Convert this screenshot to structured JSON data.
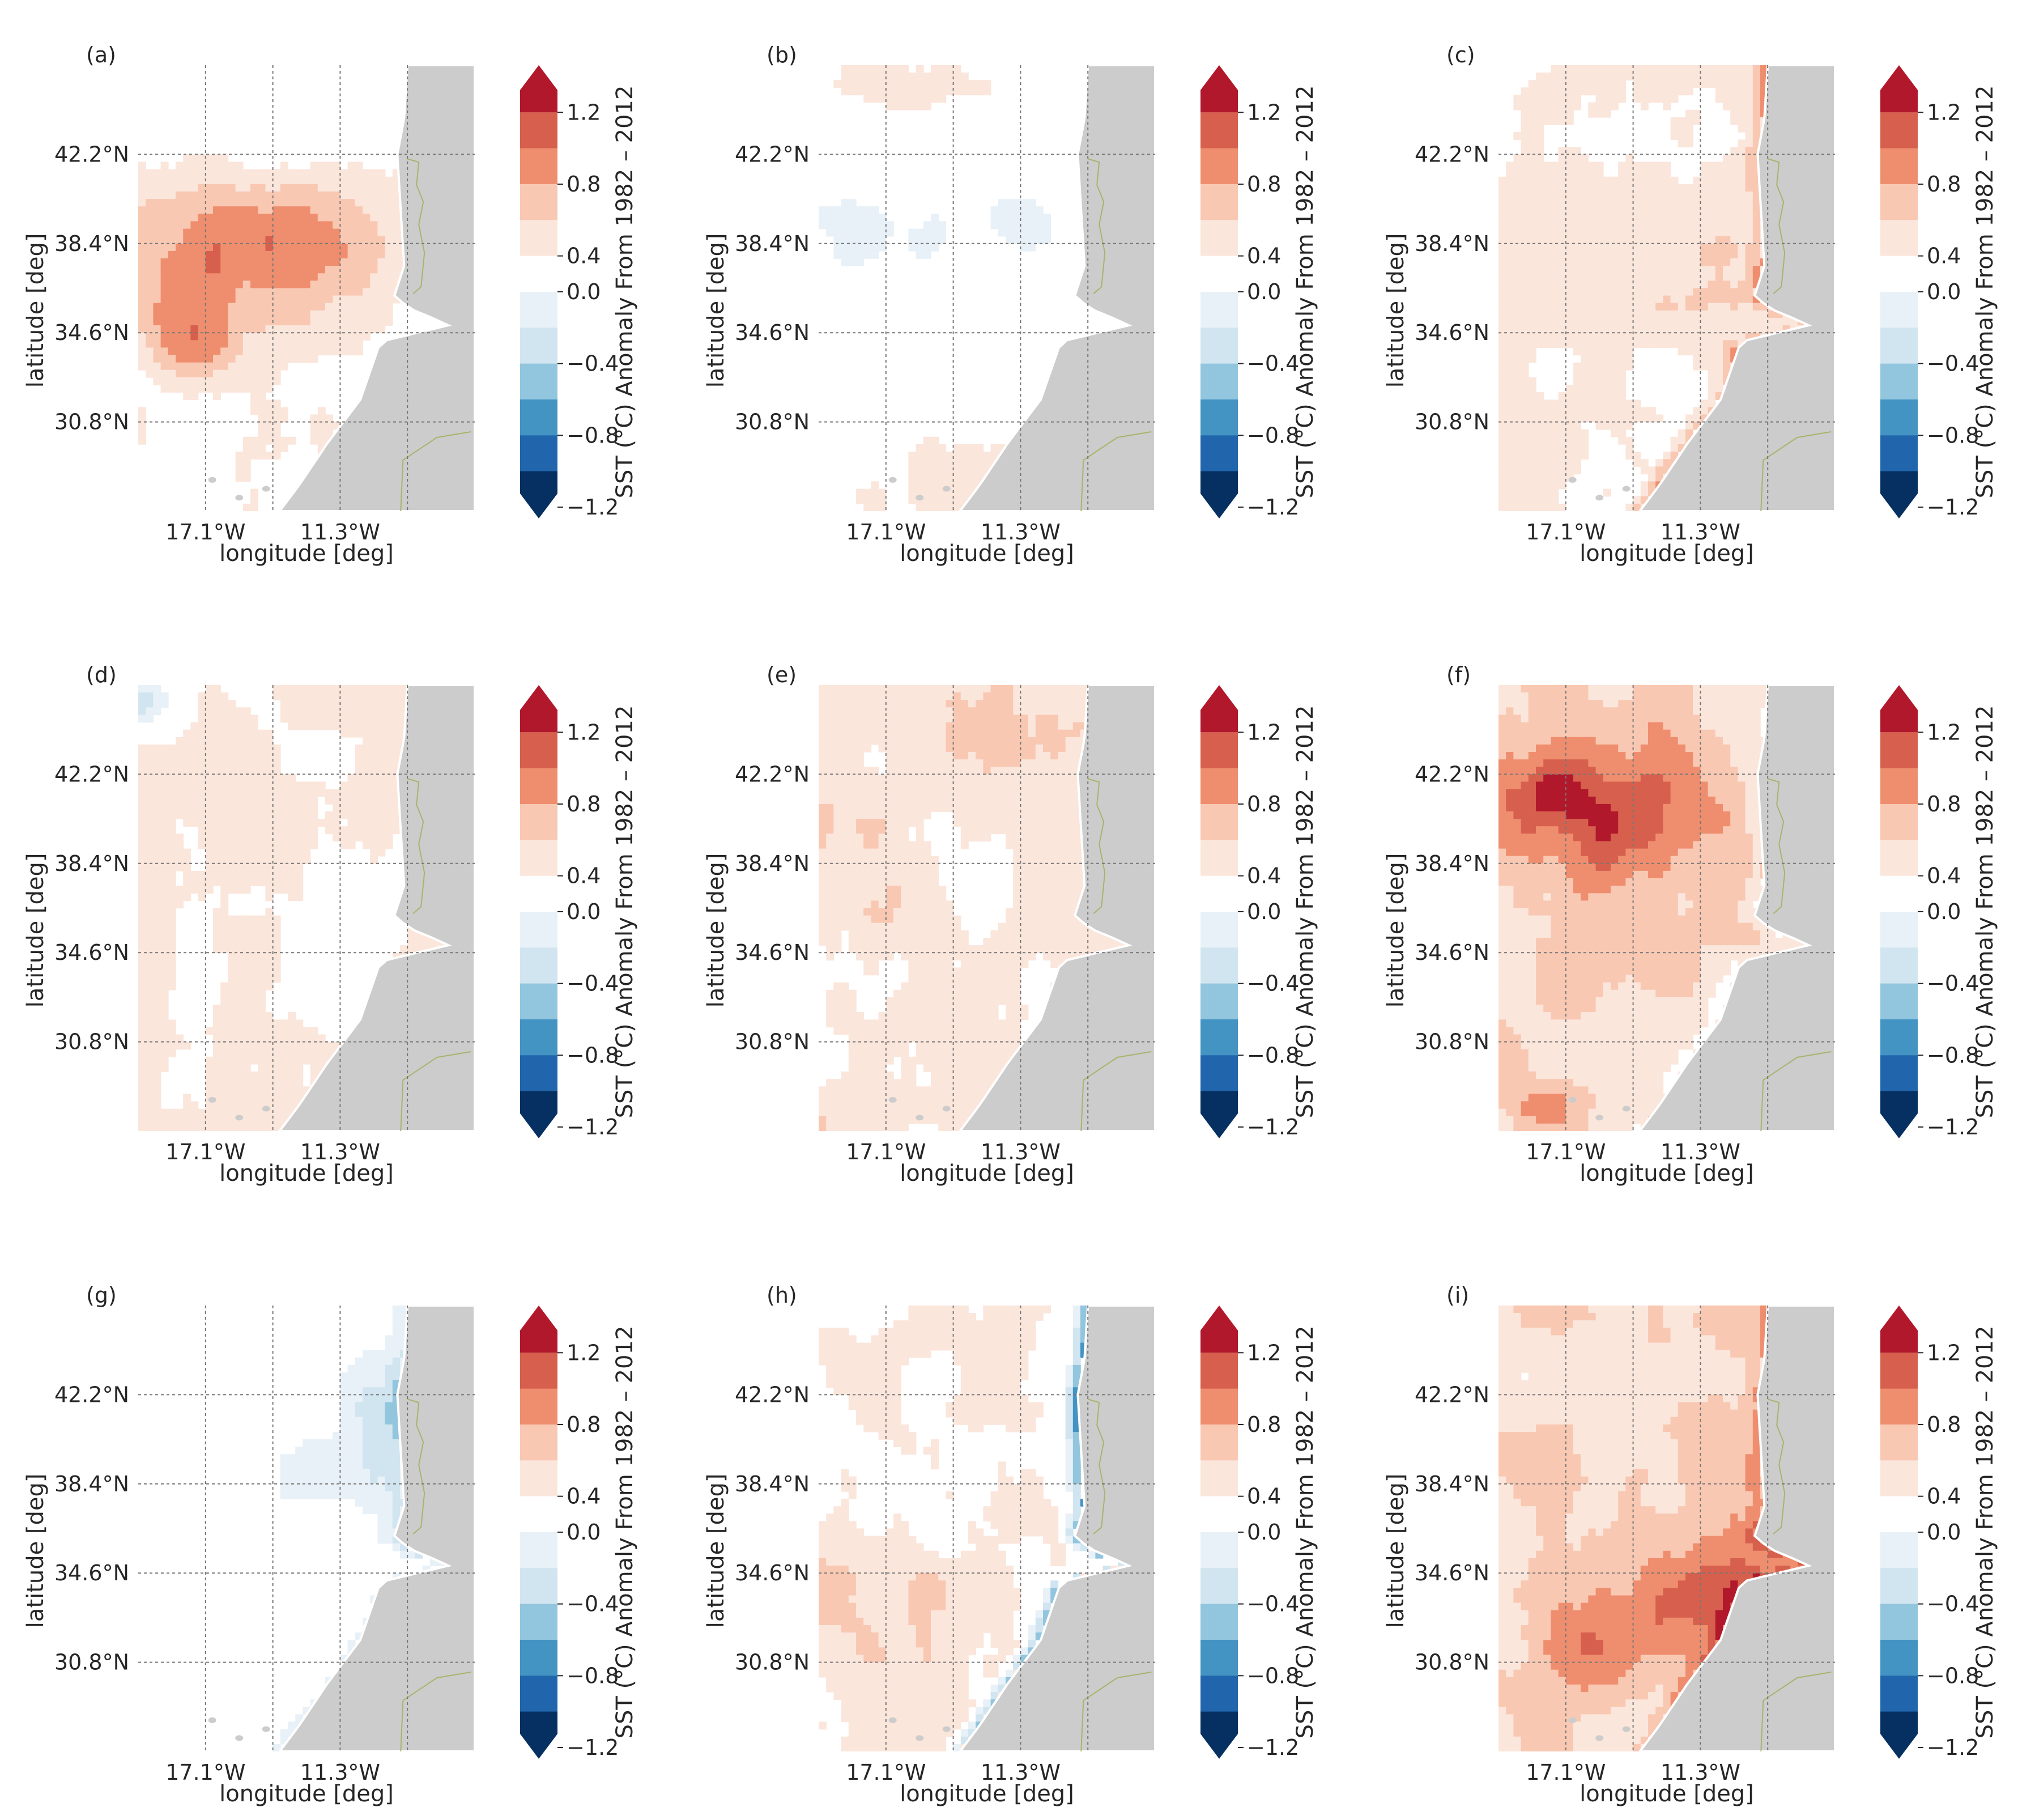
{
  "figure": {
    "colors": {
      "land": "#cccccc",
      "land_edge": "#ffffff",
      "ocean": "#ffffff",
      "grid": "#777777",
      "border": "#a9b36d"
    }
  },
  "chart_data": [
    {
      "type": "heatmap",
      "panel_label": "(a)",
      "variable": "SST anomaly",
      "xlabel": "longitude [deg]",
      "ylabel": "latitude [deg]",
      "xticks": [
        "17.1°W",
        "11.3°W"
      ],
      "yticks": [
        "42.2°N",
        "38.4°N",
        "34.6°N",
        "30.8°N"
      ],
      "colorbar": {
        "label": "SST (°C) Anomaly From 1982 – 2012",
        "ticks": [
          "1.2",
          "0.8",
          "0.4",
          "0.0",
          "−0.4",
          "−0.8",
          "−1.2"
        ],
        "levels": [
          -1.4,
          -1.2,
          -1.0,
          -0.8,
          -0.6,
          -0.4,
          -0.2,
          0.2,
          0.4,
          0.6,
          0.8,
          1.0,
          1.2,
          1.4
        ],
        "colors": [
          "#053061",
          "#2166ac",
          "#4393c3",
          "#92c5de",
          "#d1e5f0",
          "#e8f1f7",
          "#ffffff",
          "#fbe6dc",
          "#f9c8b2",
          "#ef8e6f",
          "#d6604d",
          "#b2182b"
        ]
      },
      "pattern": {
        "base": 0.12,
        "blobs": [
          [
            0.3,
            0.45,
            0.35,
            0.18,
            0.6
          ],
          [
            0.15,
            0.62,
            0.14,
            0.09,
            0.35
          ],
          [
            0.55,
            0.35,
            0.3,
            0.12,
            0.3
          ],
          [
            0.6,
            0.1,
            0.2,
            0.12,
            -0.2
          ]
        ],
        "coast": 0.0
      }
    },
    {
      "type": "heatmap",
      "panel_label": "(b)",
      "variable": "SST anomaly",
      "xlabel": "longitude [deg]",
      "ylabel": "latitude [deg]",
      "xticks": [
        "17.1°W",
        "11.3°W"
      ],
      "yticks": [
        "42.2°N",
        "38.4°N",
        "34.6°N",
        "30.8°N"
      ],
      "colorbar": {
        "label": "SST (°C) Anomaly From 1982 – 2012",
        "ticks": [
          "1.2",
          "0.8",
          "0.4",
          "0.0",
          "−0.4",
          "−0.8",
          "−1.2"
        ],
        "levels": [
          -1.4,
          -1.2,
          -1.0,
          -0.8,
          -0.6,
          -0.4,
          -0.2,
          0.2,
          0.4,
          0.6,
          0.8,
          1.0,
          1.2,
          1.4
        ],
        "colors": [
          "#053061",
          "#2166ac",
          "#4393c3",
          "#92c5de",
          "#d1e5f0",
          "#e8f1f7",
          "#ffffff",
          "#fbe6dc",
          "#f9c8b2",
          "#ef8e6f",
          "#d6604d",
          "#b2182b"
        ]
      },
      "pattern": {
        "base": 0.05,
        "blobs": [
          [
            0.45,
            0.35,
            0.4,
            0.12,
            -0.3
          ],
          [
            0.1,
            0.4,
            0.1,
            0.08,
            -0.2
          ],
          [
            0.3,
            0.05,
            0.4,
            0.06,
            0.25
          ],
          [
            0.5,
            0.9,
            0.4,
            0.1,
            0.25
          ]
        ],
        "coast": 0.0
      }
    },
    {
      "type": "heatmap",
      "panel_label": "(c)",
      "variable": "SST anomaly",
      "xlabel": "longitude [deg]",
      "ylabel": "latitude [deg]",
      "xticks": [
        "17.1°W",
        "11.3°W"
      ],
      "yticks": [
        "42.2°N",
        "38.4°N",
        "34.6°N",
        "30.8°N"
      ],
      "colorbar": {
        "label": "SST (°C) Anomaly From 1982 – 2012",
        "ticks": [
          "1.2",
          "0.8",
          "0.4",
          "0.0",
          "−0.4",
          "−0.8",
          "−1.2"
        ],
        "levels": [
          -1.4,
          -1.2,
          -1.0,
          -0.8,
          -0.6,
          -0.4,
          -0.2,
          0.2,
          0.4,
          0.6,
          0.8,
          1.0,
          1.2,
          1.4
        ],
        "colors": [
          "#053061",
          "#2166ac",
          "#4393c3",
          "#92c5de",
          "#d1e5f0",
          "#e8f1f7",
          "#ffffff",
          "#fbe6dc",
          "#f9c8b2",
          "#ef8e6f",
          "#d6604d",
          "#b2182b"
        ]
      },
      "pattern": {
        "base": 0.22,
        "blobs": [
          [
            0.9,
            0.05,
            0.1,
            0.08,
            0.3
          ],
          [
            0.65,
            0.5,
            0.2,
            0.15,
            0.1
          ]
        ],
        "coast": 0.35
      }
    },
    {
      "type": "heatmap",
      "panel_label": "(d)",
      "variable": "SST anomaly",
      "xlabel": "longitude [deg]",
      "ylabel": "latitude [deg]",
      "xticks": [
        "17.1°W",
        "11.3°W"
      ],
      "yticks": [
        "42.2°N",
        "38.4°N",
        "34.6°N",
        "30.8°N"
      ],
      "colorbar": {
        "label": "SST (°C) Anomaly From 1982 – 2012",
        "ticks": [
          "1.2",
          "0.8",
          "0.4",
          "0.0",
          "−0.4",
          "−0.8",
          "−1.2"
        ],
        "levels": [
          -1.4,
          -1.2,
          -1.0,
          -0.8,
          -0.6,
          -0.4,
          -0.2,
          0.2,
          0.4,
          0.6,
          0.8,
          1.0,
          1.2,
          1.4
        ],
        "colors": [
          "#053061",
          "#2166ac",
          "#4393c3",
          "#92c5de",
          "#d1e5f0",
          "#e8f1f7",
          "#ffffff",
          "#fbe6dc",
          "#f9c8b2",
          "#ef8e6f",
          "#d6604d",
          "#b2182b"
        ]
      },
      "pattern": {
        "base": 0.22,
        "blobs": [
          [
            0.03,
            0.04,
            0.12,
            0.07,
            -0.55
          ],
          [
            0.6,
            0.55,
            0.2,
            0.15,
            -0.1
          ]
        ],
        "coast": 0.0
      }
    },
    {
      "type": "heatmap",
      "panel_label": "(e)",
      "variable": "SST anomaly",
      "xlabel": "longitude [deg]",
      "ylabel": "latitude [deg]",
      "xticks": [
        "17.1°W",
        "11.3°W"
      ],
      "yticks": [
        "42.2°N",
        "38.4°N",
        "34.6°N",
        "30.8°N"
      ],
      "colorbar": {
        "label": "SST (°C) Anomaly From 1982 – 2012",
        "ticks": [
          "1.2",
          "0.8",
          "0.4",
          "0.0",
          "−0.4",
          "−0.8",
          "−1.2"
        ],
        "levels": [
          -1.4,
          -1.2,
          -1.0,
          -0.8,
          -0.6,
          -0.4,
          -0.2,
          0.2,
          0.4,
          0.6,
          0.8,
          1.0,
          1.2,
          1.4
        ],
        "colors": [
          "#053061",
          "#2166ac",
          "#4393c3",
          "#92c5de",
          "#d1e5f0",
          "#e8f1f7",
          "#ffffff",
          "#fbe6dc",
          "#f9c8b2",
          "#ef8e6f",
          "#d6604d",
          "#b2182b"
        ]
      },
      "pattern": {
        "base": 0.28,
        "blobs": [
          [
            0.6,
            0.08,
            0.3,
            0.1,
            0.2
          ],
          [
            0.9,
            0.5,
            0.05,
            0.04,
            0.5
          ],
          [
            0.4,
            0.5,
            0.2,
            0.15,
            -0.1
          ]
        ],
        "coast": 0.0
      }
    },
    {
      "type": "heatmap",
      "panel_label": "(f)",
      "variable": "SST anomaly",
      "xlabel": "longitude [deg]",
      "ylabel": "latitude [deg]",
      "xticks": [
        "17.1°W",
        "11.3°W"
      ],
      "yticks": [
        "42.2°N",
        "38.4°N",
        "34.6°N",
        "30.8°N"
      ],
      "colorbar": {
        "label": "SST (°C) Anomaly From 1982 – 2012",
        "ticks": [
          "1.2",
          "0.8",
          "0.4",
          "0.0",
          "−0.4",
          "−0.8",
          "−1.2"
        ],
        "levels": [
          -1.4,
          -1.2,
          -1.0,
          -0.8,
          -0.6,
          -0.4,
          -0.2,
          0.2,
          0.4,
          0.6,
          0.8,
          1.0,
          1.2,
          1.4
        ],
        "colors": [
          "#053061",
          "#2166ac",
          "#4393c3",
          "#92c5de",
          "#d1e5f0",
          "#e8f1f7",
          "#ffffff",
          "#fbe6dc",
          "#f9c8b2",
          "#ef8e6f",
          "#d6604d",
          "#b2182b"
        ]
      },
      "pattern": {
        "base": 0.32,
        "blobs": [
          [
            0.3,
            0.28,
            0.35,
            0.18,
            0.6
          ],
          [
            0.15,
            0.25,
            0.12,
            0.06,
            0.35
          ],
          [
            0.4,
            0.6,
            0.3,
            0.1,
            0.15
          ],
          [
            0.15,
            0.95,
            0.15,
            0.06,
            0.3
          ],
          [
            0.92,
            0.49,
            0.05,
            0.03,
            0.6
          ]
        ],
        "coast": -0.2
      }
    },
    {
      "type": "heatmap",
      "panel_label": "(g)",
      "variable": "SST anomaly",
      "xlabel": "longitude [deg]",
      "ylabel": "latitude [deg]",
      "xticks": [
        "17.1°W",
        "11.3°W"
      ],
      "yticks": [
        "42.2°N",
        "38.4°N",
        "34.6°N",
        "30.8°N"
      ],
      "colorbar": {
        "label": "SST (°C) Anomaly From 1982 – 2012",
        "ticks": [
          "1.2",
          "0.8",
          "0.4",
          "0.0",
          "−0.4",
          "−0.8",
          "−1.2"
        ],
        "levels": [
          -1.4,
          -1.2,
          -1.0,
          -0.8,
          -0.6,
          -0.4,
          -0.2,
          0.2,
          0.4,
          0.6,
          0.8,
          1.0,
          1.2,
          1.4
        ],
        "colors": [
          "#053061",
          "#2166ac",
          "#4393c3",
          "#92c5de",
          "#d1e5f0",
          "#e8f1f7",
          "#ffffff",
          "#fbe6dc",
          "#f9c8b2",
          "#ef8e6f",
          "#d6604d",
          "#b2182b"
        ]
      },
      "pattern": {
        "base": -0.02,
        "blobs": [
          [
            0.72,
            0.3,
            0.1,
            0.2,
            -0.45
          ],
          [
            0.5,
            0.4,
            0.2,
            0.1,
            -0.2
          ],
          [
            0.95,
            0.05,
            0.1,
            0.06,
            0.6
          ]
        ],
        "coast": -0.3
      }
    },
    {
      "type": "heatmap",
      "panel_label": "(h)",
      "variable": "SST anomaly",
      "xlabel": "longitude [deg]",
      "ylabel": "latitude [deg]",
      "xticks": [
        "17.1°W",
        "11.3°W"
      ],
      "yticks": [
        "42.2°N",
        "38.4°N",
        "34.6°N",
        "30.8°N"
      ],
      "colorbar": {
        "label": "SST (°C) Anomaly From 1982 – 2012",
        "ticks": [
          "1.2",
          "0.8",
          "0.4",
          "0.0",
          "−0.4",
          "−0.8",
          "−1.2"
        ],
        "levels": [
          -1.4,
          -1.2,
          -1.0,
          -0.8,
          -0.6,
          -0.4,
          -0.2,
          0.2,
          0.4,
          0.6,
          0.8,
          1.0,
          1.2,
          1.4
        ],
        "colors": [
          "#053061",
          "#2166ac",
          "#4393c3",
          "#92c5de",
          "#d1e5f0",
          "#e8f1f7",
          "#ffffff",
          "#fbe6dc",
          "#f9c8b2",
          "#ef8e6f",
          "#d6604d",
          "#b2182b"
        ]
      },
      "pattern": {
        "base": 0.2,
        "blobs": [
          [
            0.15,
            0.65,
            0.2,
            0.15,
            0.25
          ],
          [
            0.75,
            0.25,
            0.1,
            0.2,
            -0.2
          ]
        ],
        "coast": -0.9
      }
    },
    {
      "type": "heatmap",
      "panel_label": "(i)",
      "variable": "SST anomaly",
      "xlabel": "longitude [deg]",
      "ylabel": "latitude [deg]",
      "xticks": [
        "17.1°W",
        "11.3°W"
      ],
      "yticks": [
        "42.2°N",
        "38.4°N",
        "34.6°N",
        "30.8°N"
      ],
      "colorbar": {
        "label": "SST (°C) Anomaly From 1982 – 2012",
        "ticks": [
          "1.2",
          "0.8",
          "0.4",
          "0.0",
          "−0.4",
          "−0.8",
          "−1.2"
        ],
        "levels": [
          -1.4,
          -1.2,
          -1.0,
          -0.8,
          -0.6,
          -0.4,
          -0.2,
          0.2,
          0.4,
          0.6,
          0.8,
          1.0,
          1.2,
          1.4
        ],
        "colors": [
          "#053061",
          "#2166ac",
          "#4393c3",
          "#92c5de",
          "#d1e5f0",
          "#e8f1f7",
          "#ffffff",
          "#fbe6dc",
          "#f9c8b2",
          "#ef8e6f",
          "#d6604d",
          "#b2182b"
        ]
      },
      "pattern": {
        "base": 0.38,
        "blobs": [
          [
            0.65,
            0.65,
            0.3,
            0.15,
            0.5
          ],
          [
            0.3,
            0.75,
            0.1,
            0.1,
            0.35
          ],
          [
            0.1,
            0.15,
            0.15,
            0.1,
            -0.2
          ],
          [
            0.5,
            0.3,
            0.2,
            0.1,
            0.1
          ]
        ],
        "coast": 0.3
      }
    }
  ]
}
